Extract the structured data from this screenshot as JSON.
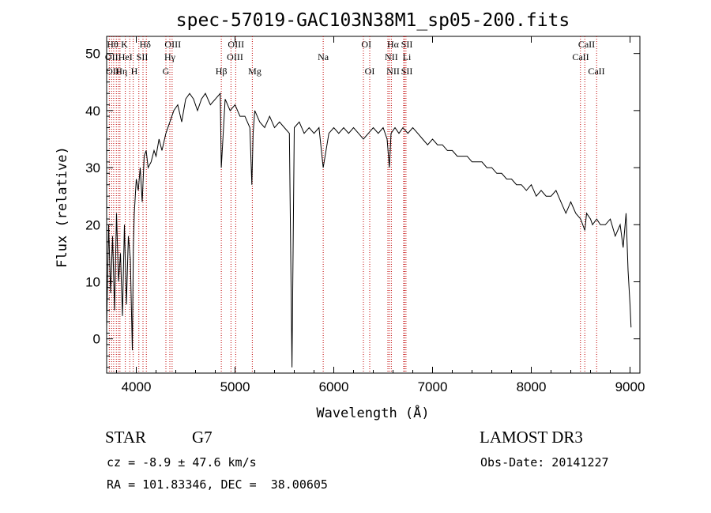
{
  "chart_data": {
    "type": "line",
    "title": "spec-57019-GAC103N38M1_sp05-200.fits",
    "xlabel": "Wavelength (Å)",
    "ylabel": "Flux (relative)",
    "xlim": [
      3700,
      9100
    ],
    "ylim": [
      -6,
      53
    ],
    "xticks": [
      4000,
      5000,
      6000,
      7000,
      8000,
      9000
    ],
    "yticks": [
      0,
      10,
      20,
      30,
      40,
      50
    ],
    "grid": false,
    "series": [
      {
        "name": "flux",
        "x": [
          3700,
          3720,
          3740,
          3760,
          3780,
          3800,
          3820,
          3840,
          3860,
          3880,
          3900,
          3920,
          3940,
          3960,
          3970,
          3980,
          4000,
          4020,
          4040,
          4060,
          4080,
          4100,
          4120,
          4150,
          4180,
          4200,
          4230,
          4260,
          4300,
          4340,
          4380,
          4420,
          4460,
          4500,
          4540,
          4580,
          4620,
          4660,
          4700,
          4750,
          4800,
          4850,
          4861,
          4900,
          4950,
          5000,
          5050,
          5100,
          5150,
          5170,
          5183,
          5200,
          5250,
          5300,
          5350,
          5400,
          5450,
          5500,
          5550,
          5577,
          5600,
          5650,
          5700,
          5750,
          5800,
          5850,
          5893,
          5950,
          6000,
          6050,
          6100,
          6150,
          6200,
          6250,
          6300,
          6350,
          6400,
          6450,
          6500,
          6540,
          6563,
          6580,
          6620,
          6660,
          6700,
          6750,
          6800,
          6850,
          6900,
          6950,
          7000,
          7050,
          7100,
          7150,
          7200,
          7250,
          7300,
          7350,
          7400,
          7450,
          7500,
          7550,
          7600,
          7650,
          7700,
          7750,
          7800,
          7850,
          7900,
          7950,
          8000,
          8050,
          8100,
          8150,
          8200,
          8250,
          8300,
          8350,
          8400,
          8450,
          8500,
          8542,
          8560,
          8600,
          8620,
          8662,
          8700,
          8750,
          8800,
          8850,
          8900,
          8930,
          8960,
          8980,
          9000,
          9010
        ],
        "values": [
          2,
          20,
          8,
          18,
          5,
          22,
          10,
          15,
          4,
          20,
          6,
          18,
          14,
          -2,
          16,
          22,
          28,
          26,
          30,
          24,
          32,
          33,
          30,
          31,
          33,
          32,
          35,
          33,
          36,
          38,
          40,
          41,
          38,
          42,
          43,
          42,
          40,
          42,
          43,
          41,
          42,
          43,
          30,
          42,
          40,
          41,
          39,
          39,
          37,
          27,
          36,
          40,
          38,
          37,
          39,
          37,
          38,
          37,
          36,
          -5,
          37,
          38,
          36,
          37,
          36,
          37,
          30,
          36,
          37,
          36,
          37,
          36,
          37,
          36,
          35,
          36,
          37,
          36,
          37,
          35,
          30,
          36,
          37,
          36,
          37,
          36,
          37,
          36,
          35,
          34,
          35,
          34,
          34,
          33,
          33,
          32,
          32,
          32,
          31,
          31,
          31,
          30,
          30,
          29,
          29,
          28,
          28,
          27,
          27,
          26,
          27,
          25,
          26,
          25,
          25,
          26,
          24,
          22,
          24,
          22,
          21,
          19,
          22,
          21,
          20,
          21,
          20,
          20,
          21,
          18,
          20,
          16,
          22,
          12,
          6,
          2
        ]
      }
    ],
    "lines_top": [
      "Hθ",
      "K",
      "Hδ",
      "OIII",
      "OIII",
      "OI",
      "Hα",
      "SII",
      "CaII"
    ],
    "lines_mid": [
      "OII",
      "HeI",
      "SII",
      "Hγ",
      "OIII",
      "Na",
      "NII",
      "Li",
      "CaII"
    ],
    "lines_bot": [
      "OII",
      "Hη",
      "H",
      "G",
      "Hβ",
      "Mg",
      "OI",
      "NII",
      "SII",
      "CaII"
    ],
    "line_markers": [
      3727,
      3750,
      3771,
      3798,
      3820,
      3835,
      3889,
      3934,
      3969,
      4026,
      4068,
      4102,
      4300,
      4340,
      4363,
      4861,
      4959,
      5007,
      5175,
      5893,
      6300,
      6364,
      6548,
      6563,
      6583,
      6708,
      6716,
      6731,
      8498,
      8542,
      8662
    ]
  },
  "info": {
    "class_label": "STAR",
    "subclass": "G7",
    "survey": "LAMOST DR3",
    "cz": "cz = -8.9 ± 47.6 km/s",
    "obs_date": "Obs-Date: 20141227",
    "coords": "RA = 101.83346, DEC =  38.00605"
  }
}
